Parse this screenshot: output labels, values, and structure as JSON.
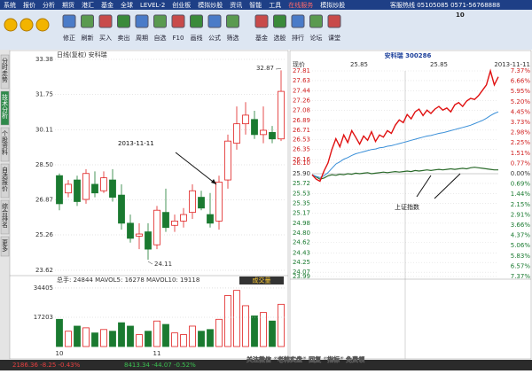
{
  "menu": [
    "系统",
    "报价",
    "分析",
    "期货",
    "港汇",
    "基金",
    "全球",
    "LEVEL-2",
    "创业板",
    "模拟炒股",
    "资讯",
    "智能",
    "工具",
    "在线服务",
    "模拟炒股"
  ],
  "menu_right": "客服热线 05105085 0571-56768888",
  "toolbar": [
    "修正",
    "刷新",
    "买入",
    "卖出",
    "周期",
    "自选",
    "F10",
    "画线",
    "公式",
    "筛选",
    "基金",
    "选股",
    "排行",
    "论坛",
    "课堂"
  ],
  "toolbar_right": "10",
  "side_tabs": [
    "分时走势",
    "技术分析",
    "个股资料",
    "自选报价",
    "综合排名",
    "更多"
  ],
  "kline": {
    "title": "日线(复权) 安科瑞",
    "ylim": [
      23.62,
      33.38
    ],
    "yticks": [
      33.38,
      31.75,
      30.11,
      {
        "value": 28.5,
        "label": "28.50"
      },
      26.87,
      25.26,
      23.62
    ],
    "candles": [
      [
        28.0,
        28.1,
        26.4,
        26.7
      ],
      [
        27.2,
        27.8,
        27.0,
        27.6
      ],
      [
        27.8,
        28.0,
        26.6,
        26.8
      ],
      [
        26.9,
        28.3,
        26.7,
        28.1
      ],
      [
        27.6,
        28.2,
        27.0,
        27.2
      ],
      [
        27.3,
        28.2,
        27.2,
        27.9
      ],
      [
        27.8,
        28.3,
        26.8,
        27.0
      ],
      [
        27.1,
        27.6,
        25.5,
        25.8
      ],
      [
        25.8,
        26.2,
        24.9,
        25.1
      ],
      [
        25.2,
        25.8,
        24.6,
        25.3
      ],
      [
        25.4,
        25.8,
        24.11,
        24.6
      ],
      [
        24.8,
        26.6,
        24.6,
        26.4
      ],
      [
        26.3,
        27.4,
        25.4,
        25.6
      ],
      [
        25.7,
        26.2,
        25.4,
        25.9
      ],
      [
        25.9,
        26.5,
        25.6,
        26.2
      ],
      [
        26.3,
        27.6,
        26.0,
        27.3
      ],
      [
        27.0,
        27.3,
        26.4,
        26.5
      ],
      [
        26.2,
        27.2,
        25.6,
        25.8
      ],
      [
        25.9,
        28.0,
        25.5,
        27.7
      ],
      [
        27.8,
        29.9,
        27.4,
        29.6
      ],
      [
        29.5,
        31.2,
        29.2,
        30.4
      ],
      [
        30.4,
        31.4,
        29.9,
        30.8
      ],
      [
        30.6,
        31.0,
        29.7,
        29.9
      ],
      [
        29.9,
        31.2,
        29.5,
        30.1
      ],
      [
        30.0,
        30.3,
        29.5,
        29.7
      ],
      [
        29.7,
        32.87,
        29.6,
        31.9
      ]
    ],
    "high_label": "32.87",
    "low_label": "24.11",
    "annotation": "2013-11-11",
    "volume": {
      "title": "总手: 24844  MAVOL5: 16278  MAVOL10: 19118",
      "button": "成交量",
      "ylim": [
        0,
        37000
      ],
      "yticks": [
        34405,
        17203
      ],
      "values": [
        16000,
        9000,
        12000,
        11000,
        8000,
        10000,
        9000,
        14000,
        12000,
        7000,
        9000,
        15000,
        13000,
        8000,
        7000,
        12000,
        9000,
        10000,
        16000,
        30000,
        33000,
        24000,
        18000,
        20000,
        15000,
        24844
      ]
    },
    "x_labels": [
      "10",
      "11"
    ]
  },
  "intraday": {
    "title": "安科瑞 300286",
    "date": "2013-11-11",
    "price_label": "现价",
    "header_values": [
      "25.85",
      "25.85"
    ],
    "ylim": [
      23.99,
      27.81
    ],
    "price_ticks": [
      27.81,
      27.63,
      27.44,
      27.26,
      27.08,
      26.89,
      26.71,
      26.53,
      26.35,
      26.16,
      {
        "value": 26.1,
        "label": "26.10"
      },
      {
        "value": 25.9,
        "label": "25.90"
      },
      25.72,
      25.53,
      25.35,
      25.17,
      24.98,
      {
        "value": 24.8,
        "label": "24.80"
      },
      24.62,
      24.43,
      24.25,
      24.07,
      23.99
    ],
    "pct_ticks": [
      "7.37%",
      "6.66%",
      "5.95%",
      "5.20%",
      "4.45%",
      "3.73%",
      "2.98%",
      "2.25%",
      "1.51%",
      "0.77%",
      "0.00%",
      "0.69%",
      "1.44%",
      "2.15%",
      "2.91%",
      "3.66%",
      "4.37%",
      "5.06%",
      "5.83%",
      "6.57%",
      "7.37%"
    ],
    "price": [
      25.88,
      25.8,
      25.76,
      25.95,
      26.1,
      26.35,
      26.55,
      26.4,
      26.62,
      26.48,
      26.7,
      26.58,
      26.45,
      26.6,
      26.52,
      26.68,
      26.5,
      26.62,
      26.58,
      26.7,
      26.65,
      26.8,
      26.9,
      26.85,
      27.0,
      26.92,
      27.05,
      27.1,
      26.98,
      27.08,
      27.02,
      27.1,
      27.15,
      27.08,
      27.12,
      27.05,
      27.18,
      27.22,
      27.15,
      27.25,
      27.3,
      27.28,
      27.35,
      27.45,
      27.55,
      27.81,
      27.55,
      27.7
    ],
    "average": [
      25.88,
      25.85,
      25.83,
      25.86,
      25.92,
      26.0,
      26.08,
      26.12,
      26.17,
      26.2,
      26.24,
      26.27,
      26.29,
      26.31,
      26.33,
      26.35,
      26.36,
      26.38,
      26.39,
      26.41,
      26.42,
      26.44,
      26.46,
      26.48,
      26.5,
      26.52,
      26.54,
      26.56,
      26.58,
      26.6,
      26.61,
      26.63,
      26.65,
      26.66,
      26.68,
      26.7,
      26.72,
      26.74,
      26.76,
      26.78,
      26.8,
      26.83,
      26.86,
      26.89,
      26.93,
      26.98,
      27.02,
      27.05
    ],
    "index": [
      25.88,
      25.84,
      25.8,
      25.82,
      25.86,
      25.88,
      25.87,
      25.89,
      25.88,
      25.9,
      25.89,
      25.91,
      25.9,
      25.91,
      25.92,
      25.9,
      25.91,
      25.92,
      25.93,
      25.92,
      25.93,
      25.94,
      25.93,
      25.94,
      25.95,
      25.94,
      25.96,
      25.95,
      25.96,
      25.97,
      25.96,
      25.97,
      25.98,
      25.97,
      25.98,
      25.99,
      25.98,
      25.99,
      26.0,
      25.99,
      26.01,
      26.02,
      26.01,
      26.0,
      25.99,
      25.98,
      25.97,
      25.97
    ],
    "annotation": "上证指数"
  },
  "status": [
    "2186.36 -8.25 -0.43%",
    "8413.34 -44.07 -0.52%"
  ],
  "watermark": "关注微信 “老韩实盘” 回复 “指标” 免费领"
}
